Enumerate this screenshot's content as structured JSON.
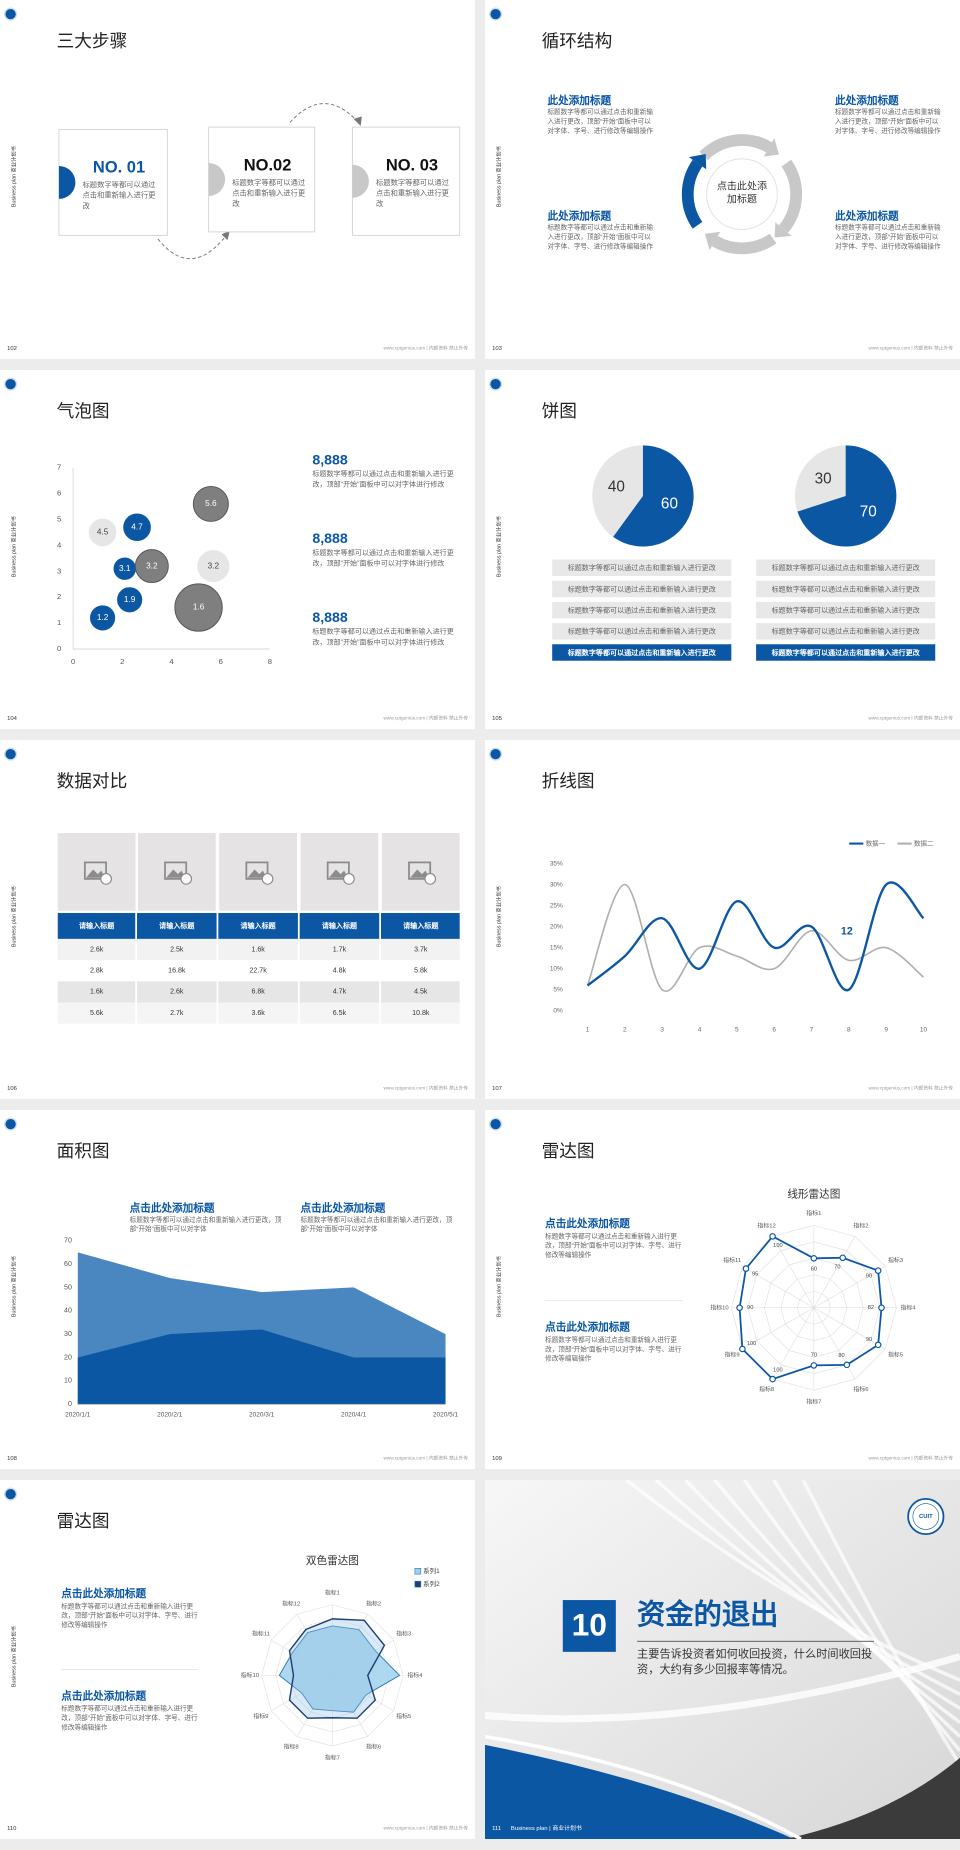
{
  "side_label": "Business plan 商业计划书",
  "footer": "www.cptgenius.com | 内部资料 禁止外传",
  "slides": [
    {
      "page": 102,
      "title": "三大步骤",
      "steps": [
        {
          "label": "NO. 01",
          "text": "标题数字等都可以通过点击和重新输入进行更改"
        },
        {
          "label": "NO.02",
          "text": "标题数字等都可以通过点击和重新输入进行更改"
        },
        {
          "label": "NO. 03",
          "text": "标题数字等都可以通过点击和重新输入进行更改"
        }
      ]
    },
    {
      "page": 103,
      "title": "循环结构",
      "center": "点击此处添加标题",
      "blocks": [
        {
          "title": "此处添加标题",
          "text": "标题数字等都可以通过点击和重新输入进行更改，顶部“开始”面板中可以对字体、字号、进行修改等编辑操作"
        },
        {
          "title": "此处添加标题",
          "text": "标题数字等都可以通过点击和重新输入进行更改，顶部“开始”面板中可以对字体、字号、进行修改等编辑操作"
        },
        {
          "title": "此处添加标题",
          "text": "标题数字等都可以通过点击和重新输入进行更改，顶部“开始”面板中可以对字体、字号、进行修改等编辑操作"
        },
        {
          "title": "此处添加标题",
          "text": "标题数字等都可以通过点击和重新输入进行更改，顶部“开始”面板中可以对字体、字号、进行修改等编辑操作"
        }
      ]
    },
    {
      "page": 104,
      "title": "气泡图",
      "chart": {
        "type": "scatter",
        "xlim": [
          0,
          8
        ],
        "xticks": [
          0,
          2,
          4,
          6,
          8
        ],
        "ylim": [
          0,
          7
        ],
        "yticks": [
          0,
          1,
          2,
          3,
          4,
          5,
          6,
          7
        ],
        "points": [
          {
            "x": 1.2,
            "y": 1.2,
            "size": 10,
            "color": "#0b57a4"
          },
          {
            "x": 2.3,
            "y": 1.9,
            "size": 10,
            "color": "#0b57a4"
          },
          {
            "x": 2.1,
            "y": 3.1,
            "size": 8,
            "color": "#0b57a4"
          },
          {
            "x": 2.6,
            "y": 4.7,
            "size": 12,
            "color": "#0b57a4"
          },
          {
            "x": 1.2,
            "y": 4.5,
            "size": 12,
            "color": "#e6e6e6"
          },
          {
            "x": 3.2,
            "y": 3.2,
            "size": 16,
            "color": "#7f7f7f"
          },
          {
            "x": 5.6,
            "y": 5.6,
            "size": 18,
            "color": "#7f7f7f"
          },
          {
            "x": 5.7,
            "y": 3.2,
            "size": 16,
            "color": "#e6e6e6"
          },
          {
            "x": 5.1,
            "y": 1.6,
            "size": 33,
            "color": "#7f7f7f"
          }
        ]
      },
      "blocks": [
        {
          "title": "8,888",
          "text": "标题数字等都可以通过点击和重新输入进行更改，顶部“开始”面板中可以对字体进行修改"
        },
        {
          "title": "8,888",
          "text": "标题数字等都可以通过点击和重新输入进行更改，顶部“开始”面板中可以对字体进行修改"
        },
        {
          "title": "8,888",
          "text": "标题数字等都可以通过点击和重新输入进行更改，顶部“开始”面板中可以对字体进行修改"
        }
      ]
    },
    {
      "page": 105,
      "title": "饼图",
      "pies": [
        {
          "type": "pie",
          "values": [
            40,
            60
          ],
          "colors": [
            "#e6e6e6",
            "#0b57a4"
          ]
        },
        {
          "type": "pie",
          "values": [
            30,
            70
          ],
          "colors": [
            "#e6e6e6",
            "#0b57a4"
          ]
        }
      ],
      "lists": [
        [
          "标题数字等都可以通过点击和重新输入进行更改",
          "标题数字等都可以通过点击和重新输入进行更改",
          "标题数字等都可以通过点击和重新输入进行更改",
          "标题数字等都可以通过点击和重新输入进行更改",
          "标题数字等都可以通过点击和重新输入进行更改"
        ],
        [
          "标题数字等都可以通过点击和重新输入进行更改",
          "标题数字等都可以通过点击和重新输入进行更改",
          "标题数字等都可以通过点击和重新输入进行更改",
          "标题数字等都可以通过点击和重新输入进行更改",
          "标题数字等都可以通过点击和重新输入进行更改"
        ]
      ]
    },
    {
      "page": 106,
      "title": "数据对比",
      "table": {
        "header": [
          "请输入标题",
          "请输入标题",
          "请输入标题",
          "请输入标题",
          "请输入标题"
        ],
        "rows": [
          [
            "2.6k",
            "2.5k",
            "1.6k",
            "1.7k",
            "3.7k"
          ],
          [
            "2.8k",
            "16.8k",
            "22.7k",
            "4.8k",
            "5.8k"
          ],
          [
            "1.6k",
            "2.6k",
            "6.8k",
            "4.7k",
            "4.5k"
          ],
          [
            "5.6k",
            "2.7k",
            "3.6k",
            "6.5k",
            "10.8k"
          ]
        ]
      }
    },
    {
      "page": 107,
      "title": "折线图",
      "chart": {
        "type": "line",
        "x": [
          1,
          2,
          3,
          4,
          5,
          6,
          7,
          8,
          9,
          10
        ],
        "xlim": [
          1,
          10
        ],
        "xticks": [
          1,
          2,
          3,
          4,
          5,
          6,
          7,
          8,
          9,
          10
        ],
        "ylim": [
          0,
          35
        ],
        "yticks": [
          {
            "value": 0,
            "label": "0%"
          },
          {
            "value": 5,
            "label": "5%"
          },
          {
            "value": 10,
            "label": "10%"
          },
          {
            "value": 15,
            "label": "15%"
          },
          {
            "value": 20,
            "label": "20%"
          },
          {
            "value": 25,
            "label": "25%"
          },
          {
            "value": 30,
            "label": "30%"
          },
          {
            "value": 35,
            "label": "35%"
          }
        ],
        "grid": false,
        "series": [
          {
            "name": "数据一",
            "color": "#0b57a4",
            "values": [
              6,
              13,
              22,
              10,
              26,
              15,
              20,
              5,
              30,
              22
            ]
          },
          {
            "name": "数据二",
            "color": "#b0b0b0",
            "values": [
              6,
              30,
              5,
              15,
              13,
              10,
              19,
              12,
              15,
              8
            ]
          }
        ],
        "annotation": 12
      }
    },
    {
      "page": 108,
      "title": "面积图",
      "chart": {
        "type": "area",
        "categories": [
          "2020/1/1",
          "2020/2/1",
          "2020/3/1",
          "2020/4/1",
          "2020/5/1"
        ],
        "ylim": [
          0,
          70
        ],
        "yticks": [
          0,
          10,
          20,
          30,
          40,
          50,
          60,
          70
        ],
        "series": [
          {
            "color": "#4a86bf",
            "values": [
              65,
              54,
              48,
              50,
              30
            ]
          },
          {
            "color": "#0b57a4",
            "values": [
              20,
              30,
              32,
              20,
              20
            ]
          }
        ]
      },
      "blocks": [
        {
          "title": "点击此处添加标题",
          "text": "标题数字等都可以通过点击和重新输入进行更改，顶部“开始”面板中可以对字体"
        },
        {
          "title": "点击此处添加标题",
          "text": "标题数字等都可以通过点击和重新输入进行更改，顶部“开始”面板中可以对字体"
        }
      ]
    },
    {
      "page": 109,
      "title": "雷达图",
      "chart": {
        "type": "radar",
        "title": "线形雷达图",
        "axes": [
          "指标1",
          "指标2",
          "指标3",
          "指标4",
          "指标5",
          "指标6",
          "指标7",
          "指标8",
          "指标9",
          "指标10",
          "指标11",
          "指标12"
        ],
        "rlim": [
          0,
          100
        ],
        "rticks": [
          20,
          40,
          60,
          80,
          100
        ],
        "color": "#0b57a4",
        "values": [
          60,
          70,
          90,
          82,
          90,
          80,
          70,
          100,
          100,
          90,
          95,
          100
        ]
      },
      "blocks": [
        {
          "title": "点击此处添加标题",
          "text": "标题数字等都可以通过点击和重新输入进行更改，顶部“开始”面板中可以对字体、字号、进行修改等编辑操作"
        },
        {
          "title": "点击此处添加标题",
          "text": "标题数字等都可以通过点击和重新输入进行更改，顶部“开始”面板中可以对字体、字号、进行修改等编辑操作"
        }
      ]
    },
    {
      "page": 110,
      "title": "雷达图",
      "chart": {
        "type": "radar",
        "title": "双色雷达图",
        "axes": [
          "指标1",
          "指标2",
          "指标3",
          "指标4",
          "指标5",
          "指标6",
          "指标7",
          "指标8",
          "指标9",
          "指标10",
          "指标11",
          "指标12"
        ],
        "rlim": [
          0,
          100
        ],
        "rticks": [
          20,
          40,
          60,
          80,
          100
        ],
        "series": [
          {
            "name": "系列1",
            "color": "#9fd1ec",
            "values": [
              70,
              75,
              70,
              95,
              55,
              60,
              50,
              55,
              50,
              75,
              65,
              70
            ]
          },
          {
            "name": "系列2",
            "color": "#1f3f73",
            "values": [
              80,
              90,
              85,
              50,
              70,
              70,
              60,
              70,
              70,
              55,
              70,
              75
            ]
          }
        ]
      },
      "blocks": [
        {
          "title": "点击此处添加标题",
          "text": "标题数字等都可以通过点击和重新输入进行更改，顶部“开始”面板中可以对字体、字号、进行修改等编辑操作"
        },
        {
          "title": "点击此处添加标题",
          "text": "标题数字等都可以通过点击和重新输入进行更改，顶部“开始”面板中可以对字体、字号、进行修改等编辑操作"
        }
      ]
    },
    {
      "page": 111,
      "footer_label": "Business plan | 商业计划书",
      "logo": "CUIT",
      "number": 10,
      "title": "资金的退出",
      "text": "主要告诉投资者如何收回投资，什么时间收回投资，大约有多少回报率等情况。"
    }
  ]
}
